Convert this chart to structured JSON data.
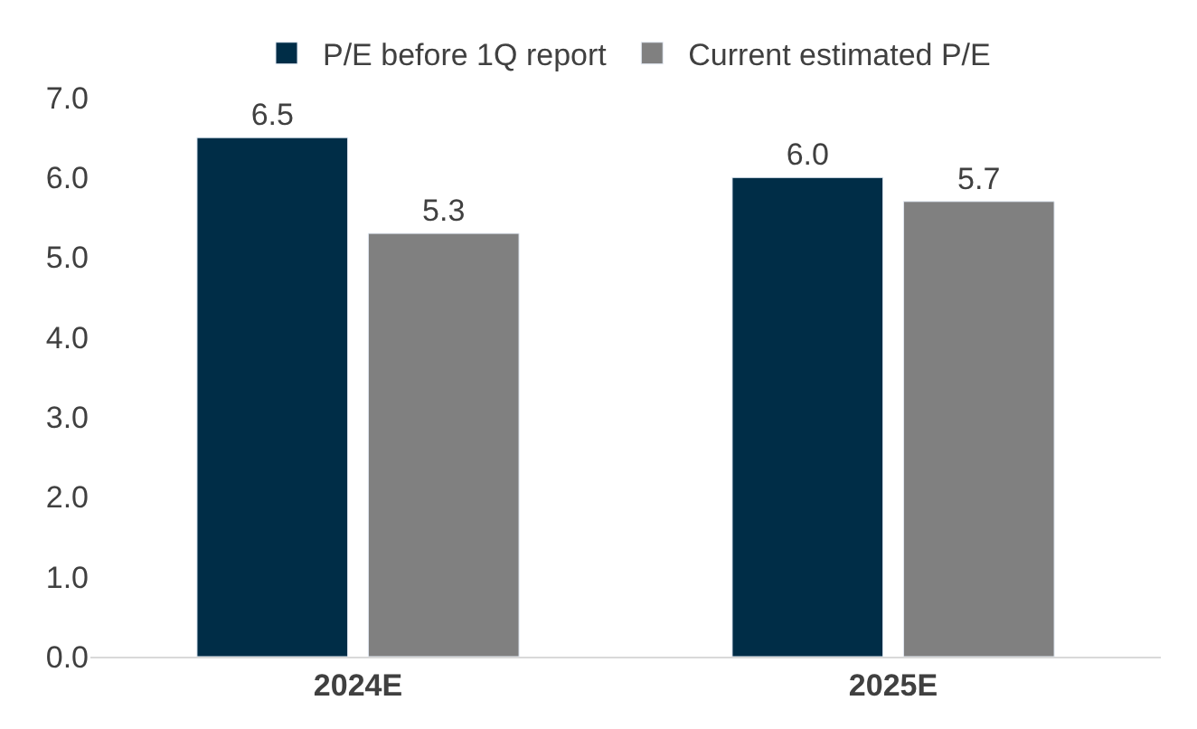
{
  "chart_data": {
    "type": "bar",
    "categories": [
      "2024E",
      "2025E"
    ],
    "series": [
      {
        "name": "P/E before 1Q report",
        "color": "#002d47",
        "values": [
          6.5,
          6.0
        ],
        "value_labels": [
          "6.5",
          "6.0"
        ]
      },
      {
        "name": "Current estimated P/E",
        "color": "#808080",
        "values": [
          5.3,
          5.7
        ],
        "value_labels": [
          "5.3",
          "5.7"
        ]
      }
    ],
    "ylim": [
      0,
      7
    ],
    "yticks": [
      {
        "value": 0,
        "label": "0.0"
      },
      {
        "value": 1,
        "label": "1.0"
      },
      {
        "value": 2,
        "label": "2.0"
      },
      {
        "value": 3,
        "label": "3.0"
      },
      {
        "value": 4,
        "label": "4.0"
      },
      {
        "value": 5,
        "label": "5.0"
      },
      {
        "value": 6,
        "label": "6.0"
      },
      {
        "value": 7,
        "label": "7.0"
      }
    ],
    "legend": "top"
  }
}
